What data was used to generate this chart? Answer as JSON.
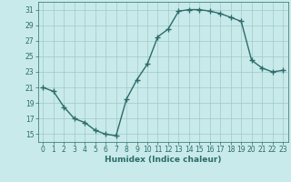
{
  "x": [
    0,
    1,
    2,
    3,
    4,
    5,
    6,
    7,
    8,
    9,
    10,
    11,
    12,
    13,
    14,
    15,
    16,
    17,
    18,
    19,
    20,
    21,
    22,
    23
  ],
  "y": [
    21,
    20.5,
    18.5,
    17,
    16.5,
    15.5,
    15,
    14.8,
    19.5,
    22,
    24,
    27.5,
    28.5,
    30.8,
    31,
    31,
    30.8,
    30.5,
    30,
    29.5,
    24.5,
    23.5,
    23,
    23.2
  ],
  "title": "",
  "xlabel": "Humidex (Indice chaleur)",
  "ylabel": "",
  "ylim": [
    14,
    32
  ],
  "xlim": [
    -0.5,
    23.5
  ],
  "yticks": [
    15,
    17,
    19,
    21,
    23,
    25,
    27,
    29,
    31
  ],
  "xticks": [
    0,
    1,
    2,
    3,
    4,
    5,
    6,
    7,
    8,
    9,
    10,
    11,
    12,
    13,
    14,
    15,
    16,
    17,
    18,
    19,
    20,
    21,
    22,
    23
  ],
  "line_color": "#2d6b6b",
  "marker": "+",
  "marker_size": 4,
  "marker_lw": 1.0,
  "line_width": 1.0,
  "bg_color": "#c8eaea",
  "grid_color": "#a0c8c8",
  "fig_bg": "#c8eaea",
  "tick_fontsize": 5.5,
  "xlabel_fontsize": 6.5
}
